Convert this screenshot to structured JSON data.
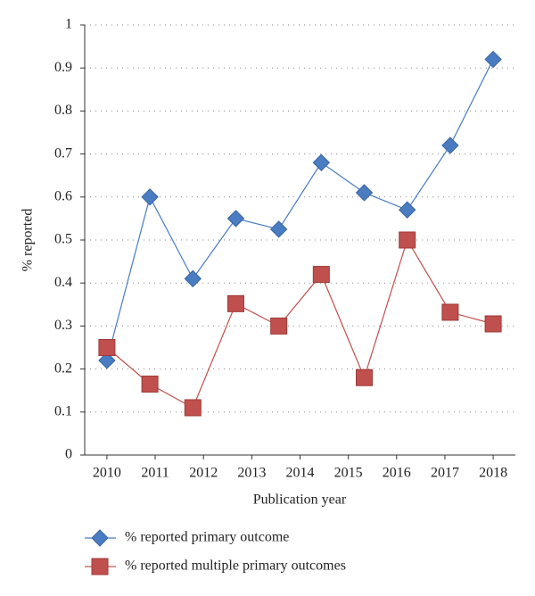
{
  "chart_data": {
    "type": "line",
    "x_label": "Publication year",
    "y_label": "% reported",
    "x": [
      2010,
      2010.89,
      2011.78,
      2012.67,
      2013.56,
      2014.44,
      2015.33,
      2016.22,
      2017.11,
      2018
    ],
    "series": [
      {
        "name": "% reported primary outcome",
        "color": "#4a7cc1",
        "marker": "diamond",
        "values": [
          0.22,
          0.6,
          0.41,
          0.55,
          0.525,
          0.68,
          0.61,
          0.57,
          0.72,
          0.92
        ]
      },
      {
        "name": "% reported multiple primary outcomes",
        "color": "#c0504d",
        "marker": "square",
        "values": [
          0.25,
          0.165,
          0.11,
          0.352,
          0.3,
          0.42,
          0.18,
          0.5,
          0.332,
          0.305
        ]
      }
    ],
    "xlim": [
      2009.54,
      2018.46
    ],
    "xticks": [
      2010,
      2011,
      2012,
      2013,
      2014,
      2015,
      2016,
      2017,
      2018
    ],
    "ylim": [
      0,
      1
    ],
    "yticks": [
      0,
      0.1,
      0.2,
      0.3,
      0.4,
      0.5,
      0.6,
      0.7,
      0.8,
      0.9,
      1
    ],
    "grid": true,
    "legend": "bottom"
  }
}
